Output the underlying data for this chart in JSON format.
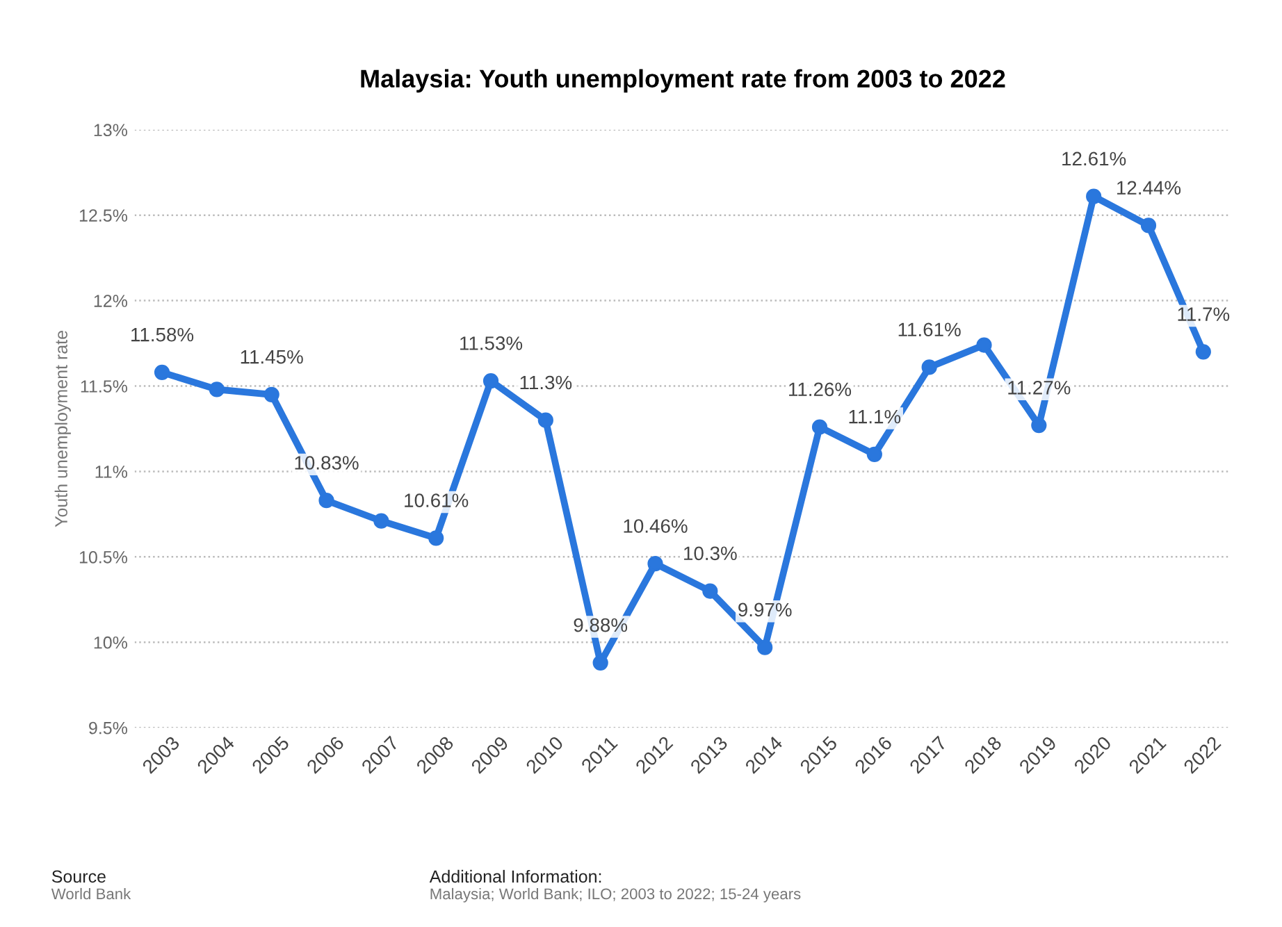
{
  "chart_data": {
    "type": "line",
    "title": "Malaysia: Youth unemployment rate from 2003 to 2022",
    "ylabel": "Youth unemployment rate",
    "categories": [
      "2003",
      "2004",
      "2005",
      "2006",
      "2007",
      "2008",
      "2009",
      "2010",
      "2011",
      "2012",
      "2013",
      "2014",
      "2015",
      "2016",
      "2017",
      "2018",
      "2019",
      "2020",
      "2021",
      "2022"
    ],
    "series": [
      {
        "color": "#2a77dd",
        "values": [
          11.58,
          11.48,
          11.45,
          10.83,
          10.71,
          10.61,
          11.53,
          11.3,
          9.88,
          10.46,
          10.3,
          9.97,
          11.26,
          11.1,
          11.61,
          11.74,
          11.27,
          12.61,
          12.44,
          11.7
        ],
        "value_labels": [
          "11.58%",
          null,
          "11.45%",
          "10.83%",
          null,
          "10.61%",
          "11.53%",
          "11.3%",
          "9.88%",
          "10.46%",
          "10.3%",
          "9.97%",
          "11.26%",
          "11.1%",
          "11.61%",
          null,
          "11.27%",
          "12.61%",
          "12.44%",
          "11.7%"
        ]
      }
    ],
    "ylim": [
      9.5,
      13
    ],
    "yticks": [
      {
        "value": 9.5,
        "label": "9.5%"
      },
      {
        "value": 10,
        "label": "10%"
      },
      {
        "value": 10.5,
        "label": "10.5%"
      },
      {
        "value": 11,
        "label": "11%"
      },
      {
        "value": 11.5,
        "label": "11.5%"
      },
      {
        "value": 12,
        "label": "12%"
      },
      {
        "value": 12.5,
        "label": "12.5%"
      },
      {
        "value": 13,
        "label": "13%"
      }
    ],
    "grid": "y",
    "marker": "circle",
    "line_style": "solid",
    "annotations": [
      "Source",
      "World Bank",
      "Additional Information:",
      "Malaysia; World Bank; ILO; 2003 to 2022; 15-24 years"
    ]
  }
}
